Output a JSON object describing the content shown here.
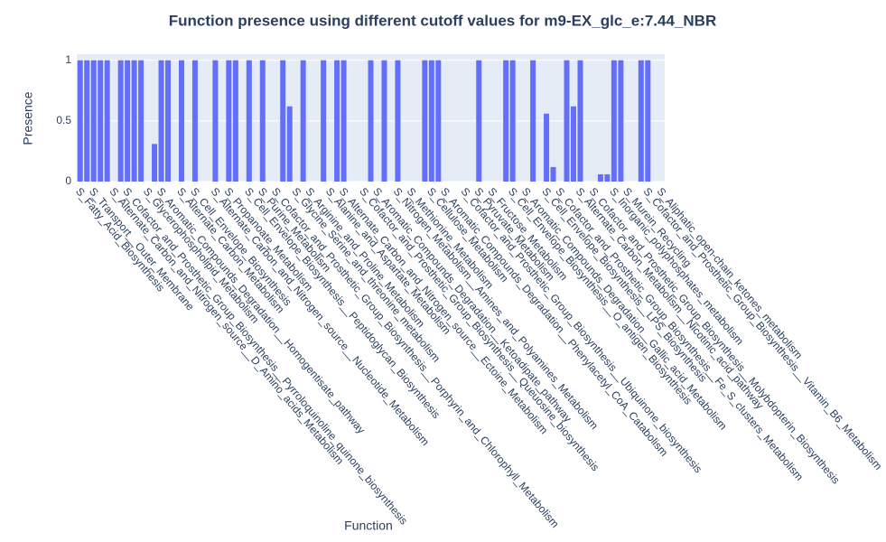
{
  "chart_data": {
    "type": "bar",
    "title": "Function presence using different cutoff values for m9-EX_glc_e:7.44_NBR",
    "xlabel": "Function",
    "ylabel": "Presence",
    "color": "#636efa",
    "ylim": [
      0,
      1.05
    ],
    "yticks": [
      0,
      0.5,
      1
    ],
    "grid": true,
    "categories": [
      "S_Fatty_Acid_Biosynthesis",
      null,
      "S_Transport__Outer_Membrane",
      null,
      null,
      "S_Alternate_Carbon_and_Nitrogen_source__D_Amino_acids_Metabolism",
      null,
      "S_Cofactor_and_Prosthetic_Group_Biosynthesis__Pyrroloquinoline_quinone_biosynthesis",
      null,
      null,
      "S_Glycerophospholipid_Metabolism",
      null,
      "S_Aromatic_Compounds_Degradation__Homogentisate_pathway",
      null,
      null,
      "S_Alternate_Carbon_Metabolism",
      null,
      "S_Cell_Envelope_Biosynthesis",
      null,
      null,
      "S_Alternate_Carbon_and_Nitrogen_source__Nucleotide_Metabolism",
      null,
      "S_Propanoate_Metabolism",
      null,
      null,
      "S_Cell_Envelope_Biosynthesis__Peptidoglycan_Biosynthesis",
      null,
      "S_Purine_Metabolism",
      null,
      "S_Cofactor_and_Prosthetic_Group_Biosynthesis__Porphyrin_and_Chlorophyll_Metabolism",
      null,
      null,
      "S_Glycine_Serine_and_threonine_metabolism",
      null,
      "S_Arginine_and_Proline_Metabolism",
      null,
      null,
      "S_Alanine_and_Aspartate_Metabolism",
      null,
      "S_Alternate_Carbon_and_Nitrogen_source__Ectoine_Metabolism",
      null,
      null,
      "S_Cofactor_and_Prosthetic_Group_Biosynthesis__Queuosine_biosynthesis",
      null,
      "S_Aromatic_Compounds_Degradation__Ketoadipate_pathway",
      null,
      null,
      "S_Nitrogen_Metabolism__Amines_and_Polyamines_Metabolism",
      null,
      "S_Methionine_Metabolism",
      null,
      null,
      "S_Cellulose_Metabolism",
      null,
      "S_Aromatic_Compounds_Degradation__Phenylacetyl_CoA_Catabolism",
      null,
      null,
      "S_Cofactor_and_Prosthetic_Group_Biosynthesis__Ubiquinone_biosynthesis",
      null,
      "S_Pyruvate_Metabolism",
      null,
      "S_Fructose_Metabolism",
      null,
      null,
      "S_Cell_Envelope_Biosynthesis__O_antigen_Biosynthesis",
      null,
      "S_Aromatic_Compounds_Degradation__Gallic_acid_Metabolism",
      null,
      null,
      "S_Cell_Envelope_Biosynthesis__LPS_Biosynthesis",
      null,
      "S_Cofactor_and_Prosthetic_Group_Biosynthesis__Fe_S_clusters_Metabolism",
      null,
      null,
      "S_Alternate_Carbon_Metabolism__Nicotinic_acid_pathway",
      null,
      "S_Cofactor_and_Prosthetic_Group_Biosynthesis__Molybdopterin_Biosynthesis",
      null,
      null,
      "S_Inorganic_polyphosphates_metabolism",
      null,
      "S_Murein_Recycling",
      null,
      null,
      "S_Cofactor_and_Prosthetic_Group_Biosynthesis__Vitamin_B6_Metabolism",
      null,
      "S_Aliphatic_open-chain_ketones_metabolism"
    ],
    "values": [
      1,
      1,
      1,
      1,
      1,
      0,
      1,
      1,
      1,
      1,
      0,
      0.31,
      1,
      1,
      0,
      1,
      0,
      1,
      0,
      0,
      1,
      0,
      1,
      1,
      0,
      1,
      0,
      1,
      0,
      0,
      1,
      0.62,
      0,
      1,
      0,
      0,
      1,
      0,
      1,
      1,
      0,
      0,
      0,
      1,
      0,
      1,
      0,
      1,
      0,
      0,
      0,
      1,
      1,
      1,
      0,
      0,
      0,
      0,
      0,
      1,
      0,
      0,
      0,
      1,
      1,
      0,
      0,
      1,
      0,
      0.56,
      0.12,
      0,
      1,
      0.62,
      1,
      0,
      0,
      0.06,
      0.06,
      1,
      1,
      0,
      0,
      1,
      1,
      0,
      0
    ]
  }
}
